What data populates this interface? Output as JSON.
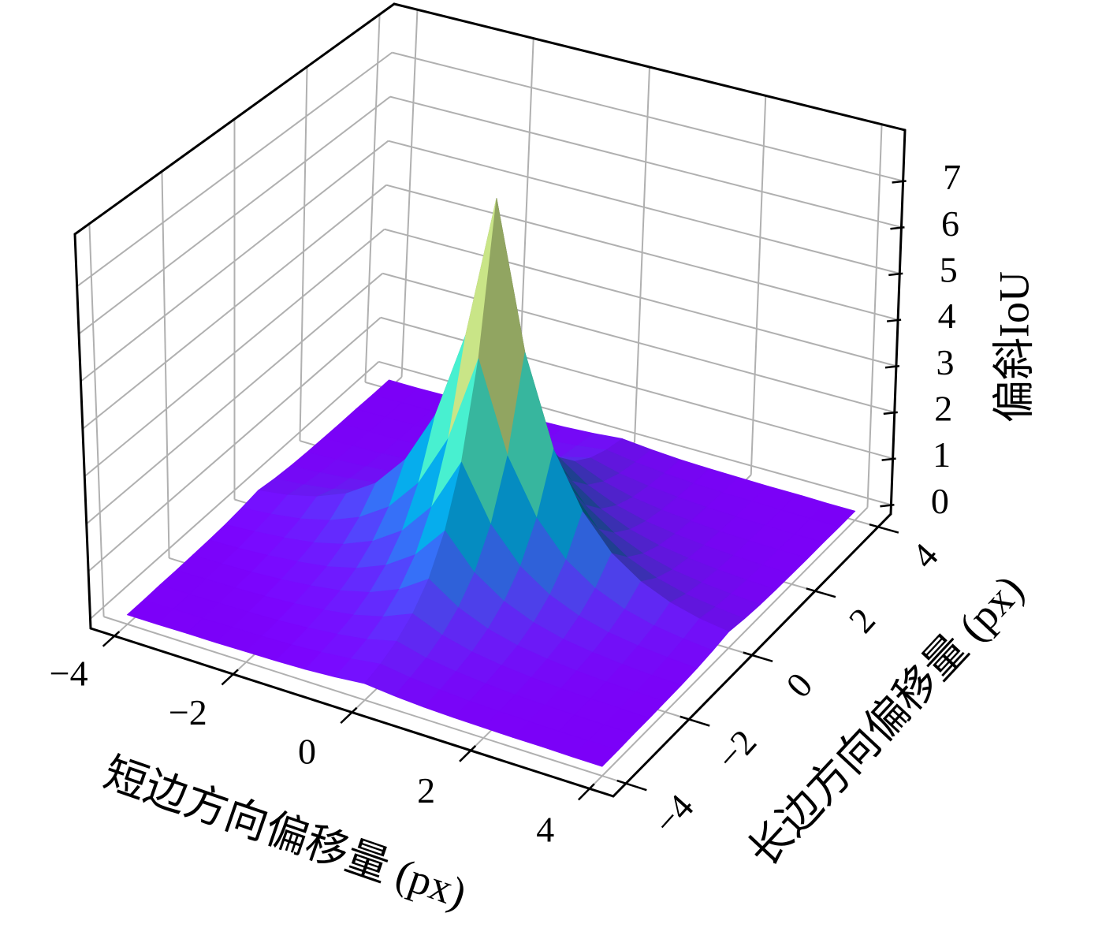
{
  "chart_data": {
    "type": "surface",
    "xlabel": "短边方向偏移量 (px)",
    "ylabel": "长边方向偏移量 (px)",
    "zlabel": "偏斜IoU",
    "colormap": "rainbow",
    "grid": true,
    "x": [
      -4,
      -3.5,
      -3,
      -2.5,
      -2,
      -1.5,
      -1,
      -0.5,
      0,
      0.5,
      1,
      1.5,
      2,
      2.5,
      3,
      3.5,
      4
    ],
    "y": [
      -4,
      -3.5,
      -3,
      -2.5,
      -2,
      -1.5,
      -1,
      -0.5,
      0,
      0.5,
      1,
      1.5,
      2,
      2.5,
      3,
      3.5,
      4
    ],
    "z": [
      [
        0,
        0,
        0.01,
        0.01,
        0.02,
        0.03,
        0.05,
        0.09,
        0.15,
        0.09,
        0.05,
        0.03,
        0.02,
        0.01,
        0.01,
        0,
        0
      ],
      [
        0,
        0.01,
        0.01,
        0.02,
        0.03,
        0.05,
        0.09,
        0.15,
        0.24,
        0.15,
        0.09,
        0.05,
        0.03,
        0.02,
        0.01,
        0.01,
        0
      ],
      [
        0.01,
        0.01,
        0.02,
        0.03,
        0.05,
        0.09,
        0.15,
        0.24,
        0.4,
        0.24,
        0.15,
        0.09,
        0.05,
        0.03,
        0.02,
        0.01,
        0.01
      ],
      [
        0.01,
        0.02,
        0.03,
        0.05,
        0.09,
        0.15,
        0.24,
        0.4,
        0.66,
        0.4,
        0.24,
        0.15,
        0.09,
        0.05,
        0.03,
        0.02,
        0.01
      ],
      [
        0.02,
        0.03,
        0.05,
        0.09,
        0.15,
        0.24,
        0.4,
        0.66,
        1.08,
        0.66,
        0.4,
        0.24,
        0.15,
        0.09,
        0.05,
        0.03,
        0.02
      ],
      [
        0.03,
        0.05,
        0.09,
        0.15,
        0.24,
        0.4,
        0.66,
        1.08,
        1.79,
        1.08,
        0.66,
        0.4,
        0.24,
        0.15,
        0.09,
        0.05,
        0.03
      ],
      [
        0.05,
        0.09,
        0.15,
        0.24,
        0.4,
        0.66,
        1.08,
        1.79,
        2.94,
        1.79,
        1.08,
        0.66,
        0.4,
        0.24,
        0.15,
        0.09,
        0.05
      ],
      [
        0.09,
        0.15,
        0.24,
        0.4,
        0.66,
        1.08,
        1.79,
        2.94,
        4.85,
        2.94,
        1.79,
        1.08,
        0.66,
        0.4,
        0.24,
        0.15,
        0.09
      ],
      [
        0.15,
        0.24,
        0.4,
        0.66,
        1.08,
        1.79,
        2.94,
        4.85,
        8,
        4.85,
        2.94,
        1.79,
        1.08,
        0.66,
        0.4,
        0.24,
        0.15
      ],
      [
        0.09,
        0.15,
        0.24,
        0.4,
        0.66,
        1.08,
        1.79,
        2.94,
        4.85,
        2.94,
        1.79,
        1.08,
        0.66,
        0.4,
        0.24,
        0.15,
        0.09
      ],
      [
        0.05,
        0.09,
        0.15,
        0.24,
        0.4,
        0.66,
        1.08,
        1.79,
        2.94,
        1.79,
        1.08,
        0.66,
        0.4,
        0.24,
        0.15,
        0.09,
        0.05
      ],
      [
        0.03,
        0.05,
        0.09,
        0.15,
        0.24,
        0.4,
        0.66,
        1.08,
        1.79,
        1.08,
        0.66,
        0.4,
        0.24,
        0.15,
        0.09,
        0.05,
        0.03
      ],
      [
        0.02,
        0.03,
        0.05,
        0.09,
        0.15,
        0.24,
        0.4,
        0.66,
        1.08,
        0.66,
        0.4,
        0.24,
        0.15,
        0.09,
        0.05,
        0.03,
        0.02
      ],
      [
        0.01,
        0.02,
        0.03,
        0.05,
        0.09,
        0.15,
        0.24,
        0.4,
        0.66,
        0.4,
        0.24,
        0.15,
        0.09,
        0.05,
        0.03,
        0.02,
        0.01
      ],
      [
        0.01,
        0.01,
        0.02,
        0.03,
        0.05,
        0.09,
        0.15,
        0.24,
        0.4,
        0.24,
        0.15,
        0.09,
        0.05,
        0.03,
        0.02,
        0.01,
        0.01
      ],
      [
        0,
        0.01,
        0.01,
        0.02,
        0.03,
        0.05,
        0.09,
        0.15,
        0.24,
        0.15,
        0.09,
        0.05,
        0.03,
        0.02,
        0.01,
        0.01,
        0
      ],
      [
        0,
        0,
        0.01,
        0.01,
        0.02,
        0.03,
        0.05,
        0.09,
        0.15,
        0.09,
        0.05,
        0.03,
        0.02,
        0.01,
        0.01,
        0,
        0
      ]
    ],
    "xlim": [
      -4.4,
      4.4
    ],
    "ylim": [
      -4.4,
      4.4
    ],
    "zlim": [
      -0.2,
      8.1
    ],
    "xticks": [
      {
        "value": -4,
        "label": "−4"
      },
      {
        "value": -2,
        "label": "−2"
      },
      0,
      2,
      4
    ],
    "yticks": [
      {
        "value": -4,
        "label": "−4"
      },
      {
        "value": -2,
        "label": "−2"
      },
      0,
      2,
      4
    ],
    "zticks": [
      0,
      1,
      2,
      3,
      4,
      5,
      6,
      7
    ]
  }
}
